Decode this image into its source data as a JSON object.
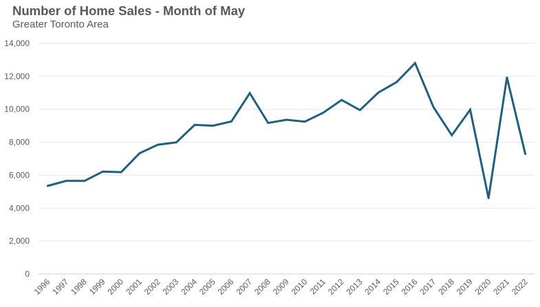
{
  "chart_data": {
    "type": "line",
    "title": "Number of Home Sales - Month of May",
    "subtitle": "Greater Toronto Area",
    "xlabel": "",
    "ylabel": "",
    "ylim": [
      0,
      14000
    ],
    "y_ticks": [
      0,
      2000,
      4000,
      6000,
      8000,
      10000,
      12000,
      14000
    ],
    "y_tick_labels": [
      "0",
      "2,000",
      "4,000",
      "6,000",
      "8,000",
      "10,000",
      "12,000",
      "14,000"
    ],
    "grid": "horizontal",
    "legend": "none",
    "line_color": "#1f5f7e",
    "categories": [
      "1996",
      "1997",
      "1998",
      "1999",
      "2000",
      "2001",
      "2002",
      "2003",
      "2004",
      "2005",
      "2006",
      "2007",
      "2008",
      "2009",
      "2010",
      "2011",
      "2012",
      "2013",
      "2014",
      "2015",
      "2016",
      "2017",
      "2018",
      "2019",
      "2020",
      "2021",
      "2022"
    ],
    "series": [
      {
        "values": [
          5350,
          5650,
          5650,
          6220,
          6180,
          7330,
          7850,
          7990,
          9050,
          9000,
          9260,
          10980,
          9170,
          9360,
          9250,
          9790,
          10560,
          9950,
          11010,
          11650,
          12800,
          10130,
          8420,
          9970,
          4600,
          11930,
          7290
        ]
      }
    ]
  }
}
